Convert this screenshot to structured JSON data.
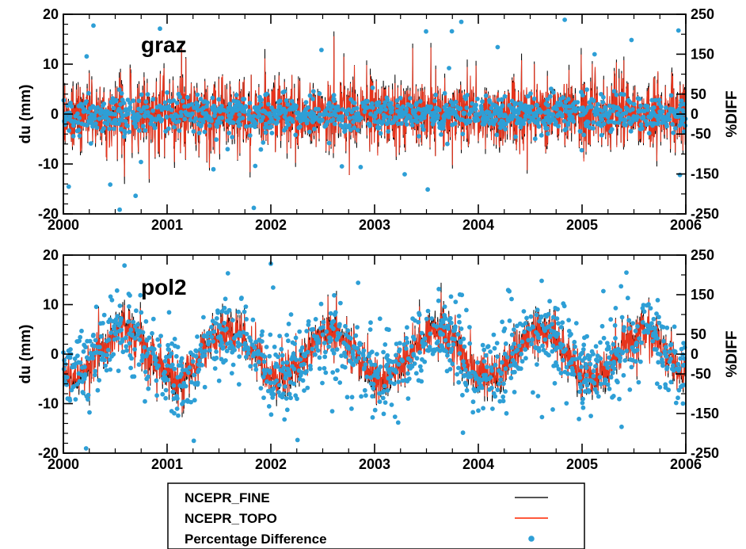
{
  "chart_data": [
    {
      "type": "line",
      "title": "graz",
      "ylabel": "du (mm)",
      "y2label": "%DIFF",
      "xlim": [
        2000,
        2006
      ],
      "ylim": [
        -20,
        20
      ],
      "y2lim": [
        -250,
        250
      ],
      "xticks": [
        "2000",
        "2001",
        "2002",
        "2003",
        "2004",
        "2005",
        "2006"
      ],
      "yticks": [
        "-20",
        "-10",
        "0",
        "10",
        "20"
      ],
      "y2ticks": [
        "-250",
        "-150",
        "-50",
        "0",
        "50",
        "150",
        "250"
      ],
      "series": [
        {
          "name": "NCEPR_FINE",
          "color": "#000000",
          "style": "line",
          "seasonal_amplitude_mm": 0,
          "noise_mm": 3.8
        },
        {
          "name": "NCEPR_TOPO",
          "color": "#e8341c",
          "style": "line",
          "seasonal_amplitude_mm": 0,
          "noise_mm": 3.8
        },
        {
          "name": "Percentage Difference",
          "color": "#2e9fd6",
          "style": "scatter",
          "axis": "right",
          "typical_spread_pct": 20
        }
      ]
    },
    {
      "type": "line",
      "title": "pol2",
      "ylabel": "du (mm)",
      "y2label": "%DIFF",
      "xlim": [
        2000,
        2006
      ],
      "ylim": [
        -20,
        20
      ],
      "y2lim": [
        -250,
        250
      ],
      "xticks": [
        "2000",
        "2001",
        "2002",
        "2003",
        "2004",
        "2005",
        "2006"
      ],
      "yticks": [
        "-20",
        "-10",
        "0",
        "10",
        "20"
      ],
      "y2ticks": [
        "-250",
        "-150",
        "-50",
        "0",
        "50",
        "150",
        "250"
      ],
      "series": [
        {
          "name": "NCEPR_FINE",
          "color": "#000000",
          "style": "line",
          "seasonal_amplitude_mm": 5,
          "seasonal_peak_month": 7,
          "noise_mm": 2.2
        },
        {
          "name": "NCEPR_TOPO",
          "color": "#e8341c",
          "style": "line",
          "seasonal_amplitude_mm": 4.5,
          "seasonal_peak_month": 7,
          "noise_mm": 2.0
        },
        {
          "name": "Percentage Difference",
          "color": "#2e9fd6",
          "style": "scatter",
          "axis": "right",
          "typical_spread_pct": 45
        }
      ]
    }
  ],
  "legend": {
    "placement": "bottom",
    "items": [
      {
        "label": "NCEPR_FINE",
        "color": "#555555",
        "marker": "line"
      },
      {
        "label": "NCEPR_TOPO",
        "color": "#ff5a3c",
        "marker": "line"
      },
      {
        "label": "Percentage Difference",
        "color": "#2e9fd6",
        "marker": "dot"
      }
    ]
  }
}
